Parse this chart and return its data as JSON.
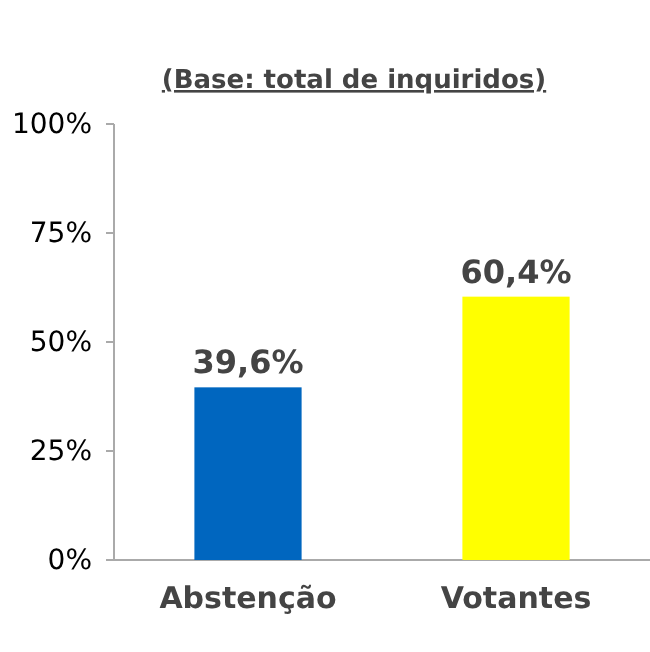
{
  "chart_data": {
    "type": "bar",
    "title": "(Base: total de inquiridos)",
    "categories": [
      "Abstenção",
      "Votantes"
    ],
    "values": [
      39.6,
      60.4
    ],
    "colors": [
      "#0066bf",
      "#ffff00"
    ],
    "value_labels": [
      "39,6%",
      "60,4%"
    ],
    "ylim": [
      0,
      100
    ],
    "yticks": [
      {
        "value": 0,
        "label": "0%"
      },
      {
        "value": 25,
        "label": "25%"
      },
      {
        "value": 50,
        "label": "50%"
      },
      {
        "value": 75,
        "label": "75%"
      },
      {
        "value": 100,
        "label": "100%"
      }
    ],
    "grid": false
  }
}
